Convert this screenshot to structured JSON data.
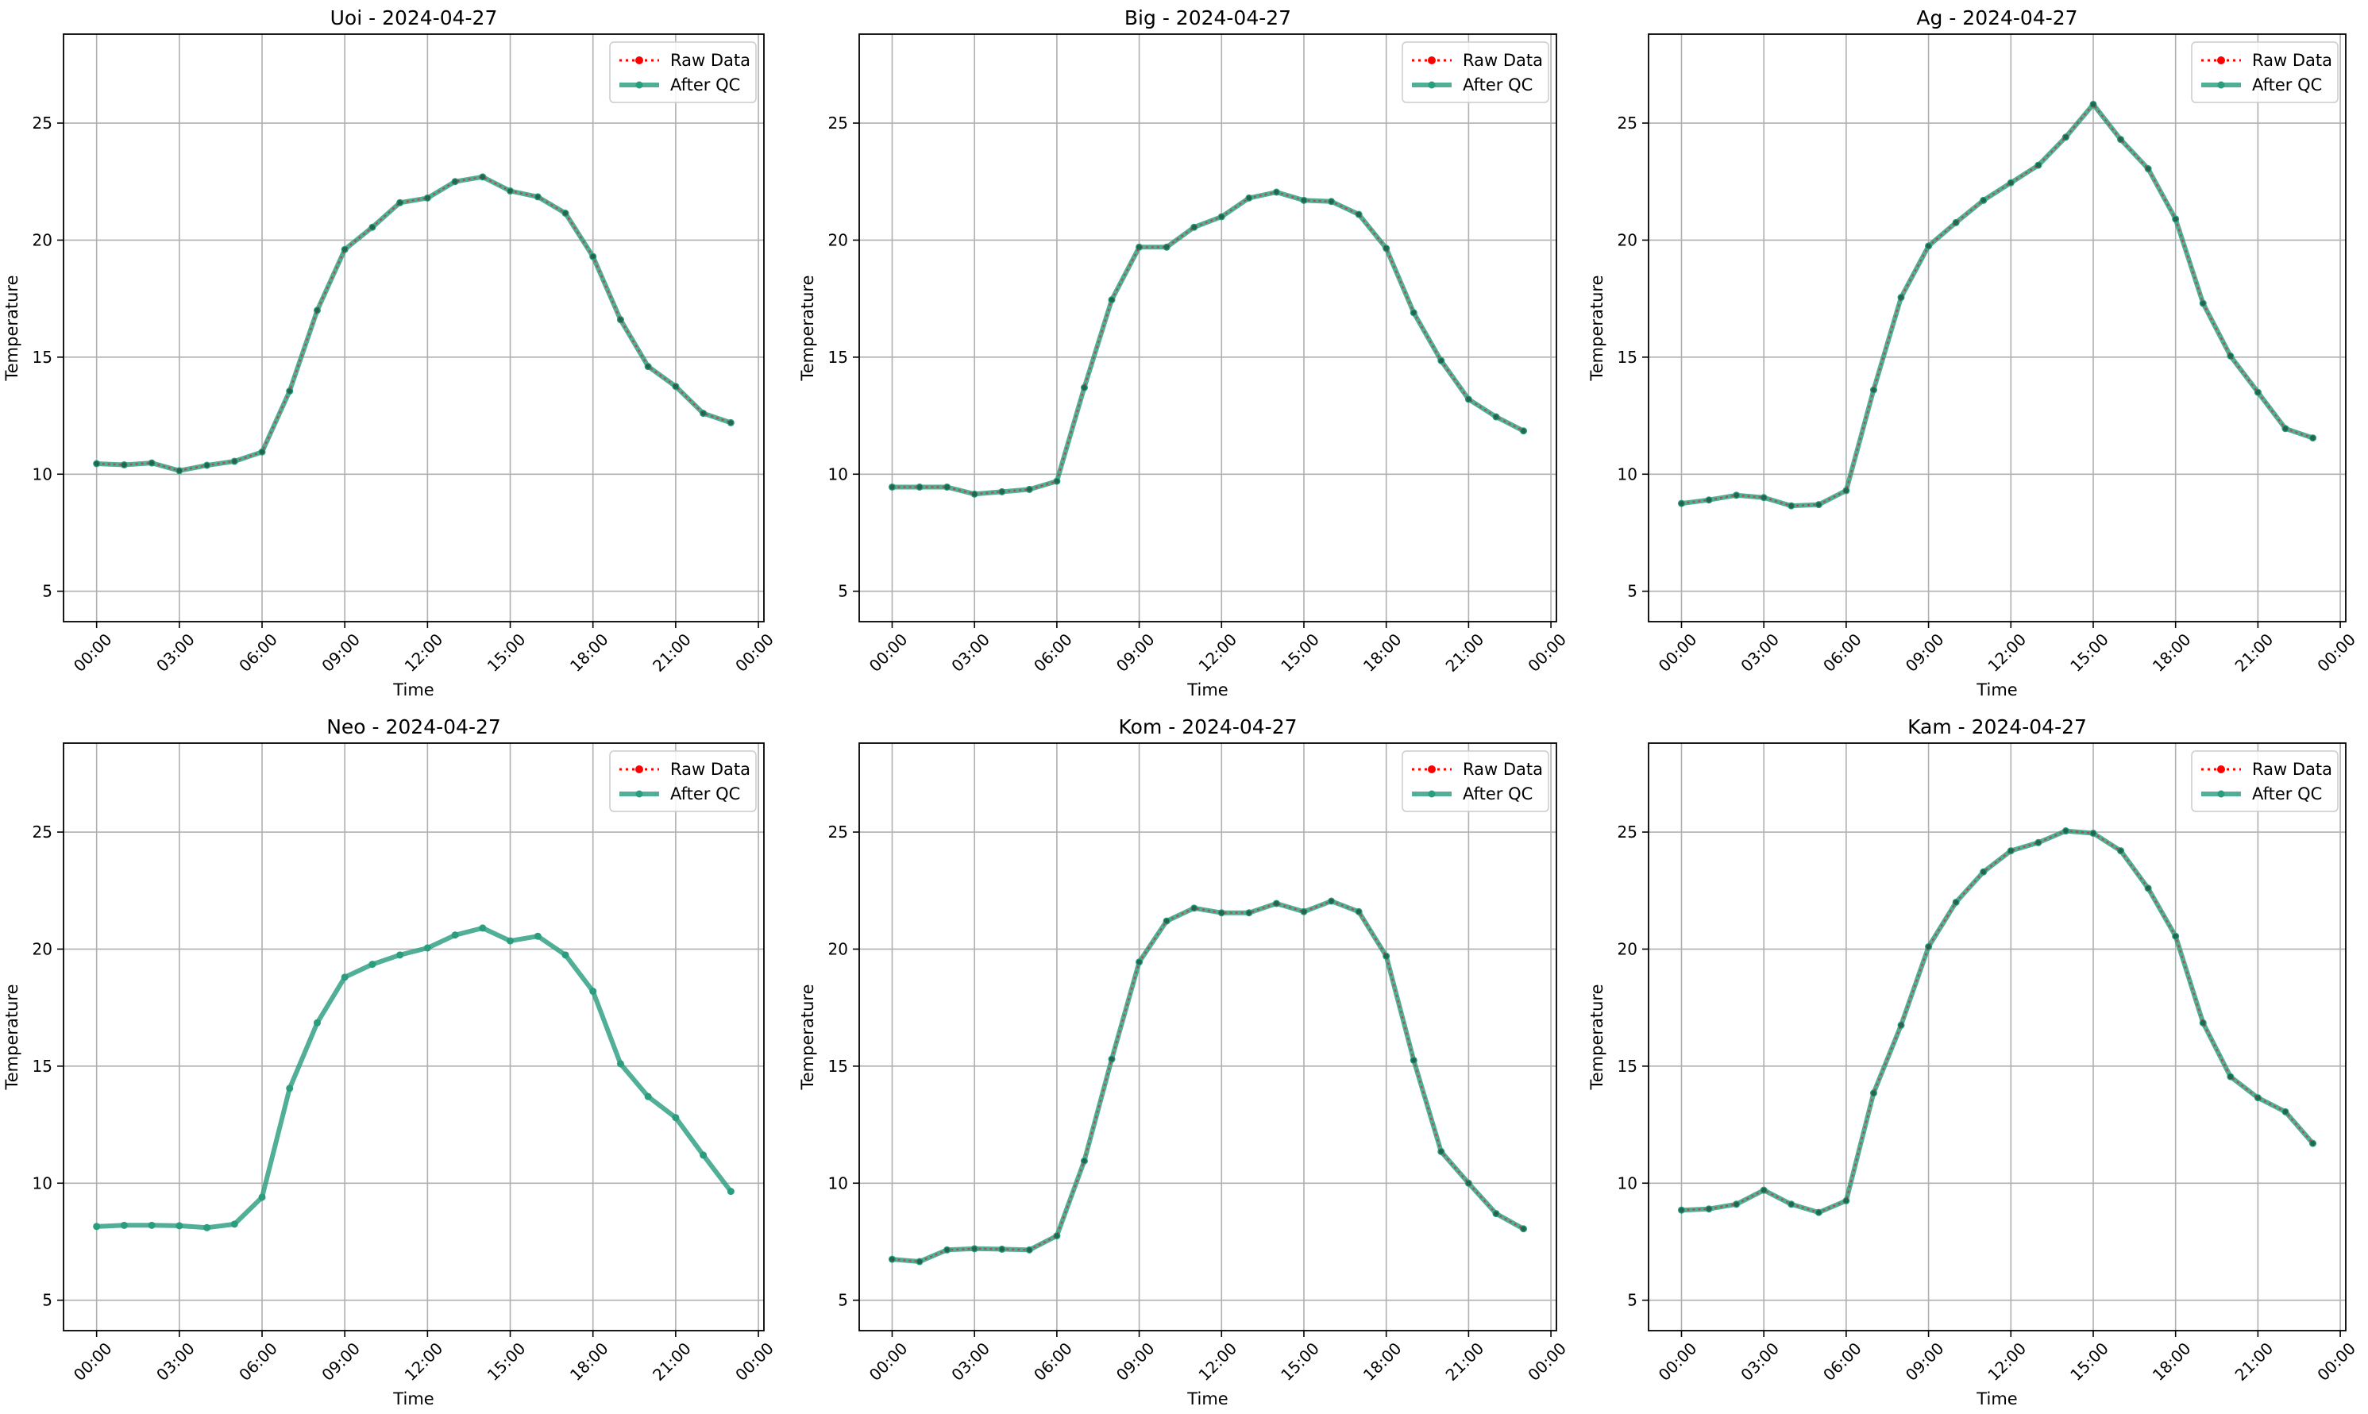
{
  "figure": {
    "background": "#ffffff",
    "grid": true,
    "legend_placement": "upper-right"
  },
  "colors": {
    "raw": "#ff0000",
    "qc": "#2a9d7f",
    "grid": "#b0b0b0",
    "axis": "#000000"
  },
  "legend": {
    "raw_label": "Raw Data",
    "qc_label": "After QC"
  },
  "chart_data": [
    {
      "type": "line",
      "title": "Uoi - 2024-04-27",
      "xlabel": "Time",
      "ylabel": "Temperature",
      "xticks": [
        "00:00",
        "03:00",
        "06:00",
        "09:00",
        "12:00",
        "15:00",
        "18:00",
        "21:00",
        "00:00"
      ],
      "yticks": [
        5,
        10,
        15,
        20,
        25
      ],
      "xlim": [
        -1.2,
        24.2
      ],
      "ylim": [
        3.7,
        28.8
      ],
      "x_hours": [
        0,
        1,
        2,
        3,
        4,
        5,
        6,
        7,
        8,
        9,
        10,
        11,
        12,
        13,
        14,
        15,
        16,
        17,
        18,
        19,
        20,
        21,
        22,
        23
      ],
      "series": [
        {
          "name": "Raw Data",
          "values": [
            10.45,
            10.4,
            10.48,
            10.15,
            10.38,
            10.55,
            10.95,
            13.55,
            17.0,
            19.6,
            20.55,
            21.6,
            21.8,
            22.5,
            22.7,
            22.1,
            21.85,
            21.15,
            19.3,
            16.6,
            14.6,
            13.75,
            12.6,
            12.2
          ]
        },
        {
          "name": "After QC",
          "values": [
            10.45,
            10.4,
            10.48,
            10.15,
            10.38,
            10.55,
            10.95,
            13.55,
            17.0,
            19.6,
            20.55,
            21.6,
            21.8,
            22.5,
            22.7,
            22.1,
            21.85,
            21.15,
            19.3,
            16.6,
            14.6,
            13.75,
            12.6,
            12.2
          ]
        }
      ]
    },
    {
      "type": "line",
      "title": "Big - 2024-04-27",
      "xlabel": "Time",
      "ylabel": "Temperature",
      "xticks": [
        "00:00",
        "03:00",
        "06:00",
        "09:00",
        "12:00",
        "15:00",
        "18:00",
        "21:00",
        "00:00"
      ],
      "yticks": [
        5,
        10,
        15,
        20,
        25
      ],
      "xlim": [
        -1.2,
        24.2
      ],
      "ylim": [
        3.7,
        28.8
      ],
      "x_hours": [
        0,
        1,
        2,
        3,
        4,
        5,
        6,
        7,
        8,
        9,
        10,
        11,
        12,
        13,
        14,
        15,
        16,
        17,
        18,
        19,
        20,
        21,
        22,
        23
      ],
      "series": [
        {
          "name": "Raw Data",
          "values": [
            9.45,
            9.45,
            9.45,
            9.15,
            9.25,
            9.35,
            9.7,
            13.7,
            17.45,
            19.7,
            19.7,
            20.55,
            21.0,
            21.8,
            22.05,
            21.7,
            21.65,
            21.1,
            19.65,
            16.9,
            14.85,
            13.2,
            12.45,
            11.85
          ]
        },
        {
          "name": "After QC",
          "values": [
            9.45,
            9.45,
            9.45,
            9.15,
            9.25,
            9.35,
            9.7,
            13.7,
            17.45,
            19.7,
            19.7,
            20.55,
            21.0,
            21.8,
            22.05,
            21.7,
            21.65,
            21.1,
            19.65,
            16.9,
            14.85,
            13.2,
            12.45,
            11.85
          ]
        }
      ]
    },
    {
      "type": "line",
      "title": "Ag - 2024-04-27",
      "xlabel": "Time",
      "ylabel": "Temperature",
      "xticks": [
        "00:00",
        "03:00",
        "06:00",
        "09:00",
        "12:00",
        "15:00",
        "18:00",
        "21:00",
        "00:00"
      ],
      "yticks": [
        5,
        10,
        15,
        20,
        25
      ],
      "xlim": [
        -1.2,
        24.2
      ],
      "ylim": [
        3.7,
        28.8
      ],
      "x_hours": [
        0,
        1,
        2,
        3,
        4,
        5,
        6,
        7,
        8,
        9,
        10,
        11,
        12,
        13,
        14,
        15,
        16,
        17,
        18,
        19,
        20,
        21,
        22,
        23
      ],
      "series": [
        {
          "name": "Raw Data",
          "values": [
            8.75,
            8.9,
            9.1,
            9.0,
            8.65,
            8.7,
            9.3,
            13.6,
            17.55,
            19.75,
            20.75,
            21.7,
            22.45,
            23.2,
            24.4,
            25.8,
            24.3,
            23.05,
            20.9,
            17.3,
            15.05,
            13.5,
            11.95,
            11.55
          ]
        },
        {
          "name": "After QC",
          "values": [
            8.75,
            8.9,
            9.1,
            9.0,
            8.65,
            8.7,
            9.3,
            13.6,
            17.55,
            19.75,
            20.75,
            21.7,
            22.45,
            23.2,
            24.4,
            25.8,
            24.3,
            23.05,
            20.9,
            17.3,
            15.05,
            13.5,
            11.95,
            11.55
          ]
        }
      ]
    },
    {
      "type": "line",
      "title": "Neo - 2024-04-27",
      "xlabel": "Time",
      "ylabel": "Temperature",
      "xticks": [
        "00:00",
        "03:00",
        "06:00",
        "09:00",
        "12:00",
        "15:00",
        "18:00",
        "21:00",
        "00:00"
      ],
      "yticks": [
        5,
        10,
        15,
        20,
        25
      ],
      "xlim": [
        -1.2,
        24.2
      ],
      "ylim": [
        3.7,
        28.8
      ],
      "x_hours": [
        0,
        1,
        2,
        3,
        4,
        5,
        6,
        7,
        8,
        9,
        10,
        11,
        12,
        13,
        14,
        15,
        16,
        17,
        18,
        19,
        20,
        21,
        22,
        23
      ],
      "series": [
        {
          "name": "Raw Data",
          "values": []
        },
        {
          "name": "After QC",
          "values": [
            8.15,
            8.2,
            8.2,
            8.18,
            8.1,
            8.25,
            9.4,
            14.05,
            16.85,
            18.8,
            19.35,
            19.75,
            20.05,
            20.6,
            20.9,
            20.35,
            20.55,
            19.75,
            18.2,
            15.1,
            13.7,
            12.8,
            11.2,
            9.65
          ]
        }
      ]
    },
    {
      "type": "line",
      "title": "Kom - 2024-04-27",
      "xlabel": "Time",
      "ylabel": "Temperature",
      "xticks": [
        "00:00",
        "03:00",
        "06:00",
        "09:00",
        "12:00",
        "15:00",
        "18:00",
        "21:00",
        "00:00"
      ],
      "yticks": [
        5,
        10,
        15,
        20,
        25
      ],
      "xlim": [
        -1.2,
        24.2
      ],
      "ylim": [
        3.7,
        28.8
      ],
      "x_hours": [
        0,
        1,
        2,
        3,
        4,
        5,
        6,
        7,
        8,
        9,
        10,
        11,
        12,
        13,
        14,
        15,
        16,
        17,
        18,
        19,
        20,
        21,
        22,
        23
      ],
      "series": [
        {
          "name": "Raw Data",
          "values": [
            6.75,
            6.65,
            7.15,
            7.2,
            7.18,
            7.15,
            7.75,
            10.95,
            15.3,
            19.45,
            21.2,
            21.75,
            21.55,
            21.55,
            21.95,
            21.6,
            22.05,
            21.6,
            19.7,
            15.25,
            11.35,
            10.0,
            8.7,
            8.05
          ]
        },
        {
          "name": "After QC",
          "values": [
            6.75,
            6.65,
            7.15,
            7.2,
            7.18,
            7.15,
            7.75,
            10.95,
            15.3,
            19.45,
            21.2,
            21.75,
            21.55,
            21.55,
            21.95,
            21.6,
            22.05,
            21.6,
            19.7,
            15.25,
            11.35,
            10.0,
            8.7,
            8.05
          ]
        }
      ]
    },
    {
      "type": "line",
      "title": "Kam - 2024-04-27",
      "xlabel": "Time",
      "ylabel": "Temperature",
      "xticks": [
        "00:00",
        "03:00",
        "06:00",
        "09:00",
        "12:00",
        "15:00",
        "18:00",
        "21:00",
        "00:00"
      ],
      "yticks": [
        5,
        10,
        15,
        20,
        25
      ],
      "xlim": [
        -1.2,
        24.2
      ],
      "ylim": [
        3.7,
        28.8
      ],
      "x_hours": [
        0,
        1,
        2,
        3,
        4,
        5,
        6,
        7,
        8,
        9,
        10,
        11,
        12,
        13,
        14,
        15,
        16,
        17,
        18,
        19,
        20,
        21,
        22,
        23
      ],
      "series": [
        {
          "name": "Raw Data",
          "values": [
            8.85,
            8.9,
            9.1,
            9.7,
            9.1,
            8.75,
            9.25,
            13.85,
            16.75,
            20.1,
            22.0,
            23.3,
            24.2,
            24.55,
            25.05,
            24.95,
            24.2,
            22.6,
            20.55,
            16.85,
            14.55,
            13.65,
            13.05,
            11.7
          ]
        },
        {
          "name": "After QC",
          "values": [
            8.85,
            8.9,
            9.1,
            9.7,
            9.1,
            8.75,
            9.25,
            13.85,
            16.75,
            20.1,
            22.0,
            23.3,
            24.2,
            24.55,
            25.05,
            24.95,
            24.2,
            22.6,
            20.55,
            16.85,
            14.55,
            13.65,
            13.05,
            11.7
          ]
        }
      ]
    }
  ]
}
